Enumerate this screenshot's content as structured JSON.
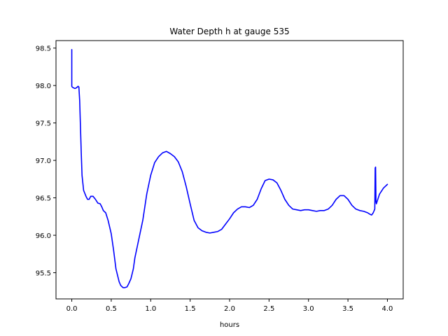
{
  "chart_data": {
    "type": "line",
    "title": "Water Depth h at gauge 535",
    "xlabel": "hours",
    "ylabel": "",
    "xlim": [
      -0.2,
      4.2
    ],
    "ylim": [
      95.15,
      98.6
    ],
    "xticks": [
      0.0,
      0.5,
      1.0,
      1.5,
      2.0,
      2.5,
      3.0,
      3.5,
      4.0
    ],
    "xtick_labels": [
      "0.0",
      "0.5",
      "1.0",
      "1.5",
      "2.0",
      "2.5",
      "3.0",
      "3.5",
      "4.0"
    ],
    "yticks": [
      95.5,
      96.0,
      96.5,
      97.0,
      97.5,
      98.0,
      98.5
    ],
    "ytick_labels": [
      "95.5",
      "96.0",
      "96.5",
      "97.0",
      "97.5",
      "98.0",
      "98.5"
    ],
    "grid": false,
    "legend": "none",
    "series": [
      {
        "color": "#0000ff",
        "x": [
          0.0,
          0.0,
          0.005,
          0.02,
          0.04,
          0.06,
          0.08,
          0.09,
          0.1,
          0.11,
          0.12,
          0.13,
          0.15,
          0.18,
          0.2,
          0.22,
          0.24,
          0.27,
          0.3,
          0.33,
          0.36,
          0.38,
          0.4,
          0.43,
          0.46,
          0.5,
          0.53,
          0.56,
          0.6,
          0.62,
          0.65,
          0.67,
          0.7,
          0.72,
          0.75,
          0.78,
          0.8,
          0.83,
          0.86,
          0.9,
          0.95,
          1.0,
          1.05,
          1.1,
          1.15,
          1.2,
          1.25,
          1.3,
          1.35,
          1.4,
          1.45,
          1.5,
          1.55,
          1.6,
          1.65,
          1.7,
          1.75,
          1.8,
          1.85,
          1.9,
          1.95,
          2.0,
          2.05,
          2.1,
          2.15,
          2.2,
          2.25,
          2.3,
          2.35,
          2.4,
          2.45,
          2.5,
          2.55,
          2.6,
          2.65,
          2.7,
          2.75,
          2.8,
          2.85,
          2.9,
          2.95,
          3.0,
          3.05,
          3.1,
          3.15,
          3.2,
          3.25,
          3.3,
          3.35,
          3.4,
          3.45,
          3.5,
          3.55,
          3.6,
          3.65,
          3.7,
          3.75,
          3.78,
          3.8,
          3.82,
          3.84,
          3.845,
          3.85,
          3.855,
          3.86,
          3.9,
          3.95,
          4.0
        ],
        "y": [
          98.48,
          97.99,
          97.98,
          97.97,
          97.96,
          97.97,
          97.99,
          97.98,
          97.8,
          97.45,
          97.1,
          96.8,
          96.6,
          96.52,
          96.48,
          96.48,
          96.52,
          96.52,
          96.48,
          96.43,
          96.42,
          96.38,
          96.33,
          96.3,
          96.2,
          96.02,
          95.8,
          95.55,
          95.38,
          95.33,
          95.3,
          95.3,
          95.31,
          95.35,
          95.42,
          95.55,
          95.7,
          95.85,
          96.0,
          96.2,
          96.55,
          96.8,
          96.97,
          97.05,
          97.1,
          97.12,
          97.09,
          97.05,
          96.98,
          96.85,
          96.65,
          96.42,
          96.2,
          96.1,
          96.06,
          96.04,
          96.03,
          96.04,
          96.05,
          96.08,
          96.15,
          96.22,
          96.3,
          96.35,
          96.38,
          96.38,
          96.37,
          96.4,
          96.48,
          96.62,
          96.73,
          96.75,
          96.74,
          96.7,
          96.6,
          96.48,
          96.4,
          96.35,
          96.34,
          96.33,
          96.34,
          96.34,
          96.33,
          96.32,
          96.33,
          96.33,
          96.35,
          96.4,
          96.48,
          96.53,
          96.53,
          96.48,
          96.4,
          96.35,
          96.33,
          96.32,
          96.3,
          96.28,
          96.27,
          96.3,
          96.35,
          96.9,
          96.91,
          96.45,
          96.42,
          96.55,
          96.63,
          96.68
        ]
      }
    ]
  }
}
